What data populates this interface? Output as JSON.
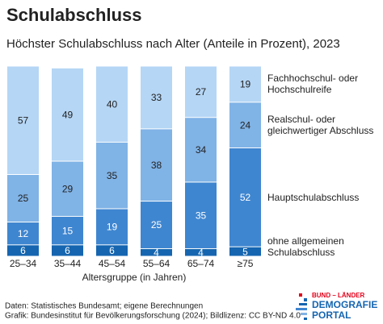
{
  "chart_data": {
    "type": "stacked_bar",
    "title": "Schulabschluss",
    "subtitle": "Höchster Schulabschluss nach Alter (Anteile in Prozent), 2023",
    "x_label": "Altersgruppe (in Jahren)",
    "categories": [
      "25–34",
      "35–44",
      "45–54",
      "55–64",
      "65–74",
      "≥75"
    ],
    "series": [
      {
        "name": "ohne allgemeinen Schulabschluss",
        "color": "#1565b0",
        "values": [
          6,
          6,
          6,
          4,
          4,
          5
        ]
      },
      {
        "name": "Hauptschulabschluss",
        "color": "#3f86d0",
        "values": [
          12,
          15,
          19,
          25,
          35,
          52
        ]
      },
      {
        "name": "Realschul- oder gleichwertiger Abschluss",
        "color": "#80b3e6",
        "values": [
          25,
          29,
          35,
          38,
          34,
          24
        ]
      },
      {
        "name": "Fachhochschul- oder Hochschulreife",
        "color": "#b5d6f5",
        "values": [
          57,
          49,
          40,
          33,
          27,
          19
        ]
      }
    ],
    "ylim": [
      0,
      100
    ]
  },
  "footer": {
    "source": "Daten: Statistisches Bundesamt; eigene Berechnungen",
    "credit": "Grafik: Bundesinstitut für Bevölkerungsforschung (2024); Bildlizenz: CC BY-ND 4.0"
  },
  "logo": {
    "lines": [
      "BUND – LÄNDER",
      "DEMOGRAFIE",
      "PORTAL"
    ]
  }
}
